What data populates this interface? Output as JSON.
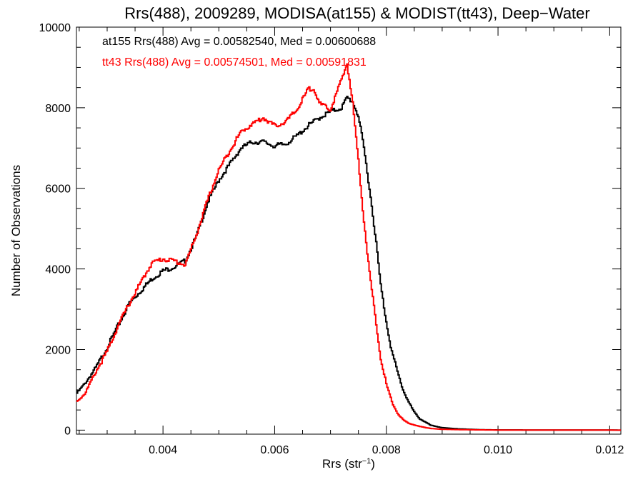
{
  "chart_data": {
    "type": "line",
    "title": "Rrs(488), 2009289, MODISA(at155) & MODIST(tt43), Deep−Water",
    "xlabel": "Rrs (str",
    "xlabel_sup": "−1",
    "xlabel_suffix": ")",
    "ylabel": "Number of Observations",
    "xlim": [
      0.00245,
      0.0122
    ],
    "ylim": [
      -100,
      10000
    ],
    "xticks": [
      0.004,
      0.006,
      0.008,
      0.01,
      0.012
    ],
    "xtick_labels": [
      "0.004",
      "0.006",
      "0.008",
      "0.010",
      "0.012"
    ],
    "yticks": [
      0,
      2000,
      4000,
      6000,
      8000,
      10000
    ],
    "ytick_labels": [
      "0",
      "2000",
      "4000",
      "6000",
      "8000",
      "10000"
    ],
    "annotations": [
      {
        "text": "at155 Rrs(488) Avg = 0.00582540, Med = 0.00600688",
        "color": "#000000"
      },
      {
        "text": "tt43 Rrs(488) Avg = 0.00574501, Med = 0.00591831",
        "color": "#ff0000"
      }
    ],
    "series": [
      {
        "color": "#000000",
        "points": [
          [
            0.00245,
            900
          ],
          [
            0.0026,
            1150
          ],
          [
            0.0028,
            1550
          ],
          [
            0.003,
            2050
          ],
          [
            0.0032,
            2600
          ],
          [
            0.0034,
            3150
          ],
          [
            0.0036,
            3450
          ],
          [
            0.0038,
            3750
          ],
          [
            0.004,
            3950
          ],
          [
            0.0042,
            4050
          ],
          [
            0.0044,
            4200
          ],
          [
            0.0046,
            4800
          ],
          [
            0.0048,
            5650
          ],
          [
            0.005,
            6200
          ],
          [
            0.0052,
            6600
          ],
          [
            0.0054,
            7000
          ],
          [
            0.0056,
            7150
          ],
          [
            0.0058,
            7150
          ],
          [
            0.006,
            7050
          ],
          [
            0.0062,
            7100
          ],
          [
            0.0064,
            7300
          ],
          [
            0.0066,
            7550
          ],
          [
            0.0068,
            7750
          ],
          [
            0.007,
            7900
          ],
          [
            0.0072,
            8000
          ],
          [
            0.0073,
            8250
          ],
          [
            0.0074,
            8150
          ],
          [
            0.0075,
            7800
          ],
          [
            0.0076,
            7000
          ],
          [
            0.0077,
            6000
          ],
          [
            0.0078,
            4900
          ],
          [
            0.0079,
            3600
          ],
          [
            0.008,
            2700
          ],
          [
            0.0081,
            1950
          ],
          [
            0.0082,
            1450
          ],
          [
            0.0083,
            1000
          ],
          [
            0.0084,
            700
          ],
          [
            0.0085,
            450
          ],
          [
            0.0086,
            280
          ],
          [
            0.0088,
            120
          ],
          [
            0.009,
            60
          ],
          [
            0.0093,
            30
          ],
          [
            0.0097,
            10
          ],
          [
            0.01,
            5
          ],
          [
            0.011,
            2
          ],
          [
            0.0122,
            0
          ]
        ]
      },
      {
        "color": "#ff0000",
        "points": [
          [
            0.00245,
            700
          ],
          [
            0.0026,
            900
          ],
          [
            0.0028,
            1450
          ],
          [
            0.003,
            1950
          ],
          [
            0.0032,
            2600
          ],
          [
            0.0034,
            3150
          ],
          [
            0.0036,
            3650
          ],
          [
            0.0038,
            4150
          ],
          [
            0.004,
            4250
          ],
          [
            0.0042,
            4200
          ],
          [
            0.0044,
            4100
          ],
          [
            0.0046,
            4850
          ],
          [
            0.0048,
            5700
          ],
          [
            0.005,
            6450
          ],
          [
            0.0052,
            6950
          ],
          [
            0.0054,
            7400
          ],
          [
            0.0056,
            7600
          ],
          [
            0.0058,
            7750
          ],
          [
            0.006,
            7550
          ],
          [
            0.0062,
            7650
          ],
          [
            0.0064,
            7950
          ],
          [
            0.0066,
            8450
          ],
          [
            0.0067,
            8500
          ],
          [
            0.0068,
            8100
          ],
          [
            0.007,
            7950
          ],
          [
            0.0072,
            8700
          ],
          [
            0.0073,
            9100
          ],
          [
            0.0074,
            8100
          ],
          [
            0.0075,
            6700
          ],
          [
            0.0076,
            5200
          ],
          [
            0.0077,
            3900
          ],
          [
            0.0078,
            2850
          ],
          [
            0.0079,
            1800
          ],
          [
            0.008,
            1150
          ],
          [
            0.0081,
            700
          ],
          [
            0.0082,
            420
          ],
          [
            0.0083,
            260
          ],
          [
            0.0084,
            170
          ],
          [
            0.0086,
            90
          ],
          [
            0.0088,
            40
          ],
          [
            0.009,
            20
          ],
          [
            0.0095,
            8
          ],
          [
            0.01,
            3
          ],
          [
            0.011,
            1
          ],
          [
            0.0122,
            0
          ]
        ]
      }
    ]
  }
}
